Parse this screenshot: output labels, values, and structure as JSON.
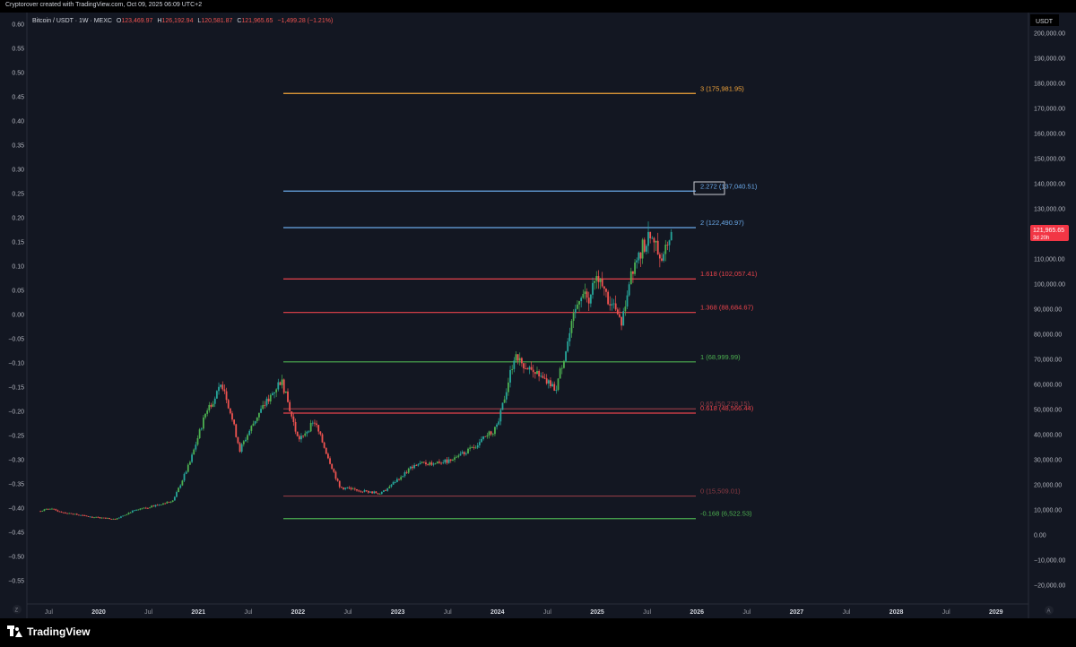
{
  "header": {
    "created_text": "Cryptorover created with TradingView.com, Oct 09, 2025 06:09 UTC+2"
  },
  "chart_header": {
    "symbol": "Bitcoin / USDT · 1W · MEXC",
    "o_label": "O",
    "o_value": "123,469.97",
    "h_label": "H",
    "h_value": "126,192.94",
    "l_label": "L",
    "l_value": "120,581.87",
    "c_label": "C",
    "c_value": "121,965.65",
    "change": "−1,499.28 (−1.21%)"
  },
  "price_axis": {
    "currency": "USDT",
    "labels": [
      "200,000.00",
      "190,000.00",
      "180,000.00",
      "170,000.00",
      "160,000.00",
      "150,000.00",
      "140,000.00",
      "130,000.00",
      "110,000.00",
      "100,000.00",
      "90,000.00",
      "80,000.00",
      "70,000.00",
      "60,000.00",
      "50,000.00",
      "40,000.00",
      "30,000.00",
      "20,000.00",
      "10,000.00",
      "0.00",
      "−10,000.00",
      "−20,000.00"
    ],
    "price_tag": "121,965.65",
    "countdown": "3d 20h",
    "corner_button": "A"
  },
  "left_axis": {
    "labels": [
      "0.60",
      "0.55",
      "0.50",
      "0.45",
      "0.40",
      "0.35",
      "0.30",
      "0.25",
      "0.20",
      "0.15",
      "0.10",
      "0.05",
      "0.00",
      "−0.05",
      "−0.10",
      "−0.15",
      "−0.20",
      "−0.25",
      "−0.30",
      "−0.35",
      "−0.40",
      "−0.45",
      "−0.50",
      "−0.55"
    ],
    "corner_button": "Z"
  },
  "time_axis": {
    "labels": [
      "Jul",
      "2020",
      "Jul",
      "2021",
      "Jul",
      "2022",
      "Jul",
      "2023",
      "Jul",
      "2024",
      "Jul",
      "2025",
      "Jul",
      "2026",
      "Jul",
      "2027",
      "Jul",
      "2028",
      "Jul",
      "2029"
    ]
  },
  "fib_levels": [
    {
      "label": "3 (175,981.95)",
      "value": 175981.95,
      "color": "#f0a33a"
    },
    {
      "label": "2.272 (137,040.51)",
      "value": 137040.51,
      "color": "#6aa9e9"
    },
    {
      "label": "2 (122,490.97)",
      "value": 122490.97,
      "color": "#6aa9e9"
    },
    {
      "label": "1.618 (102,057.41)",
      "value": 102057.41,
      "color": "#e8434b"
    },
    {
      "label": "1.368 (88,684.67)",
      "value": 88684.67,
      "color": "#e8434b"
    },
    {
      "label": "1 (68,999.99)",
      "value": 68999.99,
      "color": "#4caf50"
    },
    {
      "label": "0.65 (50,278.15)",
      "value": 50278.15,
      "color": "#8e3b44"
    },
    {
      "label": "0.618 (48,566.44)",
      "value": 48566.44,
      "color": "#e8434b"
    },
    {
      "label": "0 (15,509.01)",
      "value": 15509.01,
      "color": "#8e3b44"
    },
    {
      "label": "-0.168 (6,522.53)",
      "value": 6522.53,
      "color": "#4caf50"
    }
  ],
  "brand": {
    "name": "TradingView"
  },
  "colors": {
    "up": "#26a69a",
    "up_alt": "#4caf50",
    "down": "#ef5350",
    "background": "#131722",
    "price_tag": "#f23645"
  },
  "chart_data": {
    "type": "candlestick",
    "title": "Bitcoin / USDT · 1W · MEXC",
    "xlabel": "",
    "ylabel": "USDT",
    "ylim": [
      -20000,
      200000
    ],
    "weekly_closes_approx": [
      {
        "date": "2019-06",
        "close": 9500
      },
      {
        "date": "2019-07",
        "close": 10500
      },
      {
        "date": "2019-09",
        "close": 8800
      },
      {
        "date": "2019-12",
        "close": 7200
      },
      {
        "date": "2020-03",
        "close": 6400
      },
      {
        "date": "2020-05",
        "close": 9400
      },
      {
        "date": "2020-07",
        "close": 11000
      },
      {
        "date": "2020-10",
        "close": 13800
      },
      {
        "date": "2020-12",
        "close": 29000
      },
      {
        "date": "2021-02",
        "close": 50000
      },
      {
        "date": "2021-04",
        "close": 60000
      },
      {
        "date": "2021-06",
        "close": 34000
      },
      {
        "date": "2021-08",
        "close": 47000
      },
      {
        "date": "2021-11",
        "close": 62000
      },
      {
        "date": "2022-01",
        "close": 38000
      },
      {
        "date": "2022-03",
        "close": 45000
      },
      {
        "date": "2022-06",
        "close": 19000
      },
      {
        "date": "2022-11",
        "close": 16500
      },
      {
        "date": "2023-03",
        "close": 28000
      },
      {
        "date": "2023-07",
        "close": 29500
      },
      {
        "date": "2023-10",
        "close": 34500
      },
      {
        "date": "2024-01",
        "close": 43000
      },
      {
        "date": "2024-03",
        "close": 71000
      },
      {
        "date": "2024-08",
        "close": 58000
      },
      {
        "date": "2024-11",
        "close": 97000
      },
      {
        "date": "2024-12",
        "close": 94000
      },
      {
        "date": "2025-01",
        "close": 102000
      },
      {
        "date": "2025-04",
        "close": 84000
      },
      {
        "date": "2025-05",
        "close": 105000
      },
      {
        "date": "2025-07",
        "close": 118000
      },
      {
        "date": "2025-09",
        "close": 112000
      },
      {
        "date": "2025-10",
        "close": 121965.65
      }
    ]
  }
}
